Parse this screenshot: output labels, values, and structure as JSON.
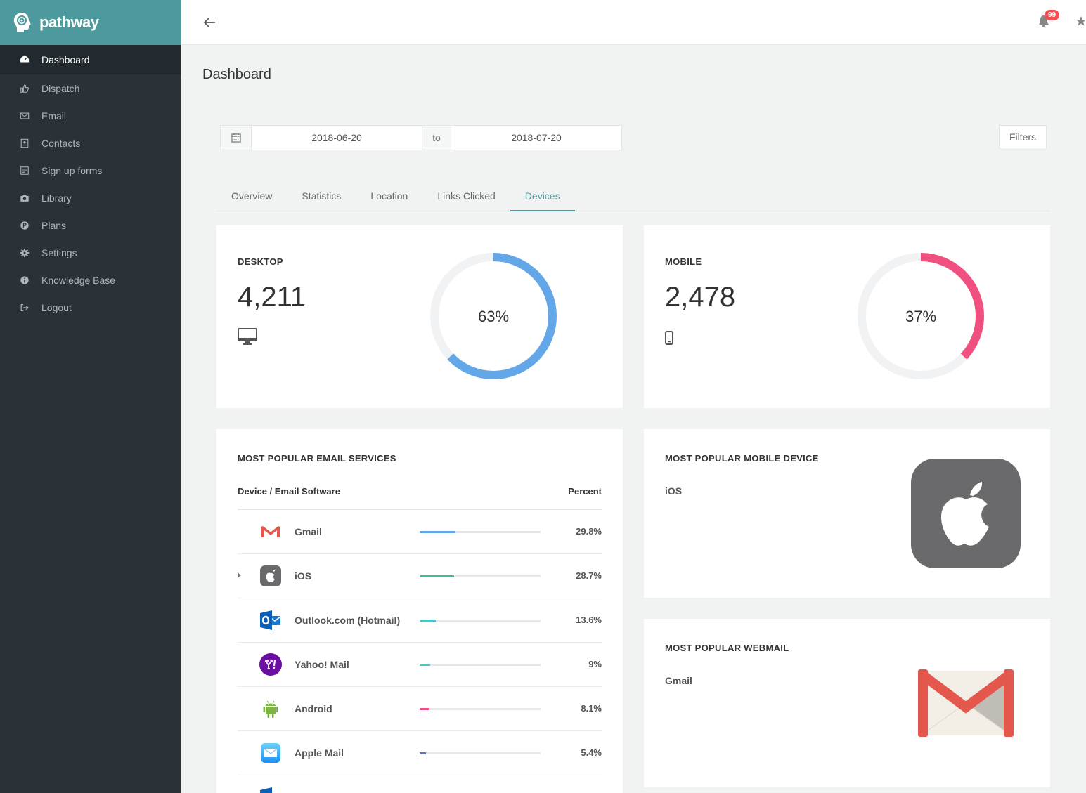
{
  "brand": {
    "name": "pathway"
  },
  "sidebar": {
    "items": [
      {
        "label": "Dashboard",
        "icon": "dashboard-icon"
      },
      {
        "label": "Dispatch",
        "icon": "thumbs-up-icon"
      },
      {
        "label": "Email",
        "icon": "envelope-icon"
      },
      {
        "label": "Contacts",
        "icon": "contact-book-icon"
      },
      {
        "label": "Sign up forms",
        "icon": "form-icon"
      },
      {
        "label": "Library",
        "icon": "camera-icon"
      },
      {
        "label": "Plans",
        "icon": "p-circle-icon"
      },
      {
        "label": "Settings",
        "icon": "gear-icon"
      },
      {
        "label": "Knowledge Base",
        "icon": "info-icon"
      },
      {
        "label": "Logout",
        "icon": "logout-icon"
      }
    ]
  },
  "header": {
    "notification_count": "99"
  },
  "page": {
    "title": "Dashboard"
  },
  "date_range": {
    "from": "2018-06-20",
    "separator": "to",
    "to": "2018-07-20"
  },
  "filters_label": "Filters",
  "tabs": [
    {
      "label": "Overview"
    },
    {
      "label": "Statistics"
    },
    {
      "label": "Location"
    },
    {
      "label": "Links Clicked"
    },
    {
      "label": "Devices"
    }
  ],
  "desktop": {
    "label": "DESKTOP",
    "count": "4,211",
    "percent_label": "63%",
    "percent": 63,
    "color": "#63a7e8"
  },
  "mobile": {
    "label": "MOBILE",
    "count": "2,478",
    "percent_label": "37%",
    "percent": 37,
    "color": "#f0507f"
  },
  "email_services": {
    "title": "MOST POPULAR EMAIL SERVICES",
    "col_device": "Device / Email Software",
    "col_percent": "Percent",
    "rows": [
      {
        "name": "Gmail",
        "percent_label": "29.8%",
        "percent": 29.8,
        "color": "#63a7e8",
        "icon": "gmail-icon"
      },
      {
        "name": "iOS",
        "percent_label": "28.7%",
        "percent": 28.7,
        "color": "#3cbf8e",
        "icon": "apple-icon"
      },
      {
        "name": "Outlook.com (Hotmail)",
        "percent_label": "13.6%",
        "percent": 13.6,
        "color": "#4ac6c7",
        "icon": "outlook-icon"
      },
      {
        "name": "Yahoo! Mail",
        "percent_label": "9%",
        "percent": 9,
        "color": "#4ac6c7",
        "icon": "yahoo-icon"
      },
      {
        "name": "Android",
        "percent_label": "8.1%",
        "percent": 8.1,
        "color": "#f0507f",
        "icon": "android-icon"
      },
      {
        "name": "Apple Mail",
        "percent_label": "5.4%",
        "percent": 5.4,
        "color": "#5b6fd6",
        "icon": "apple-mail-icon"
      }
    ]
  },
  "popular_mobile": {
    "title": "MOST POPULAR MOBILE DEVICE",
    "name": "iOS"
  },
  "popular_webmail": {
    "title": "MOST POPULAR WEBMAIL",
    "name": "Gmail"
  }
}
